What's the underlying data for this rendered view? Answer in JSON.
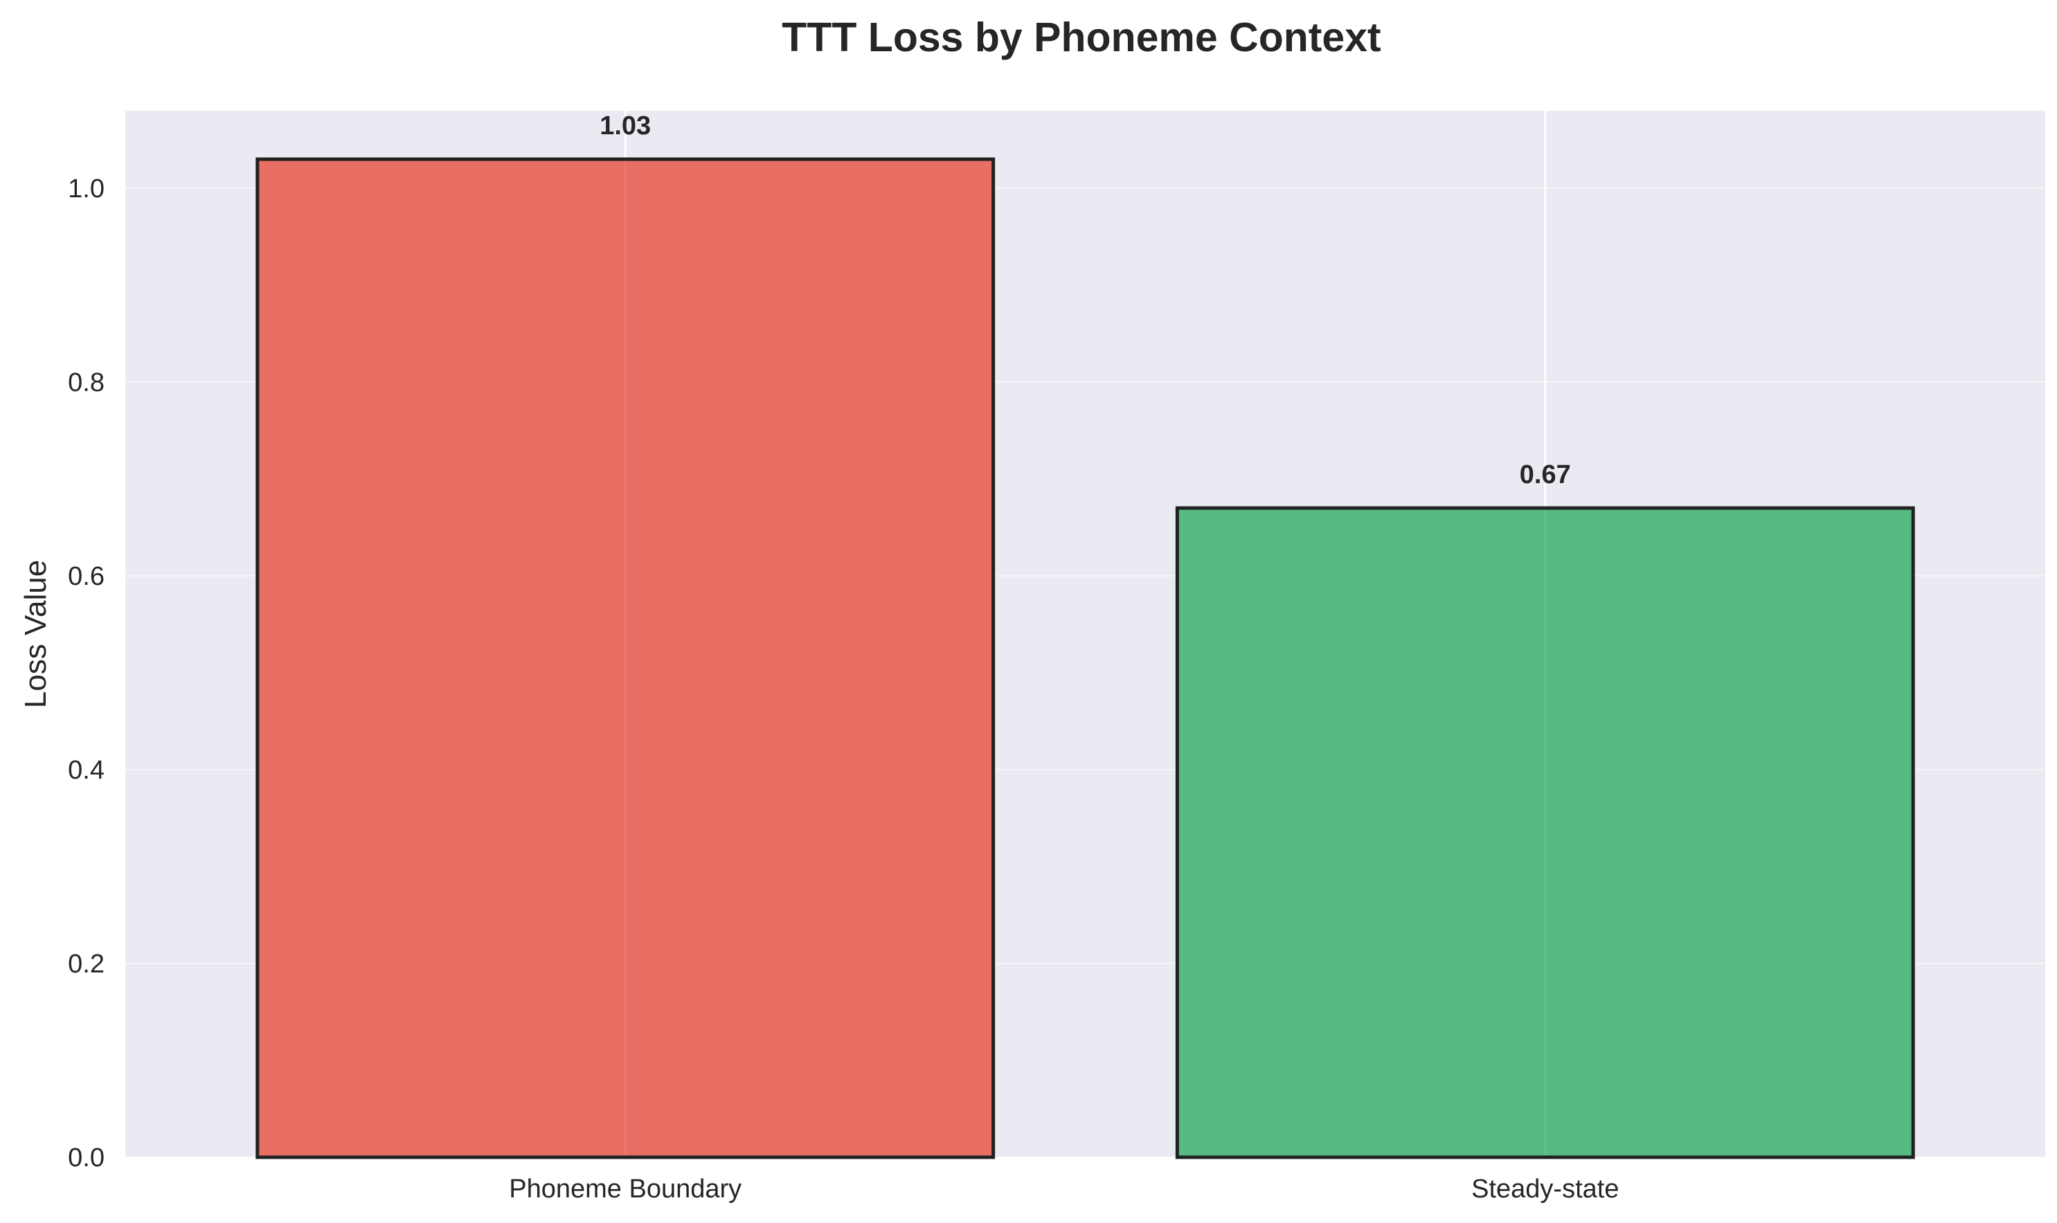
{
  "chart_data": {
    "type": "bar",
    "title": "TTT Loss by Phoneme Context",
    "xlabel": "",
    "ylabel": "Loss Value",
    "categories": [
      "Phoneme Boundary",
      "Steady-state"
    ],
    "values": [
      1.03,
      0.67
    ],
    "value_labels": [
      "1.03",
      "0.67"
    ],
    "bar_colors": [
      "#e8695f",
      "#4fb97d"
    ],
    "bar_edge_color": "#222222",
    "background_color": "#eaeaf2",
    "grid_color": "#ffffff",
    "ylim": [
      0,
      1.08
    ],
    "yticks": [
      0.0,
      0.2,
      0.4,
      0.6,
      0.8,
      1.0
    ],
    "ytick_labels": [
      "0.0",
      "0.2",
      "0.4",
      "0.6",
      "0.8",
      "1.0"
    ],
    "grid": true
  }
}
